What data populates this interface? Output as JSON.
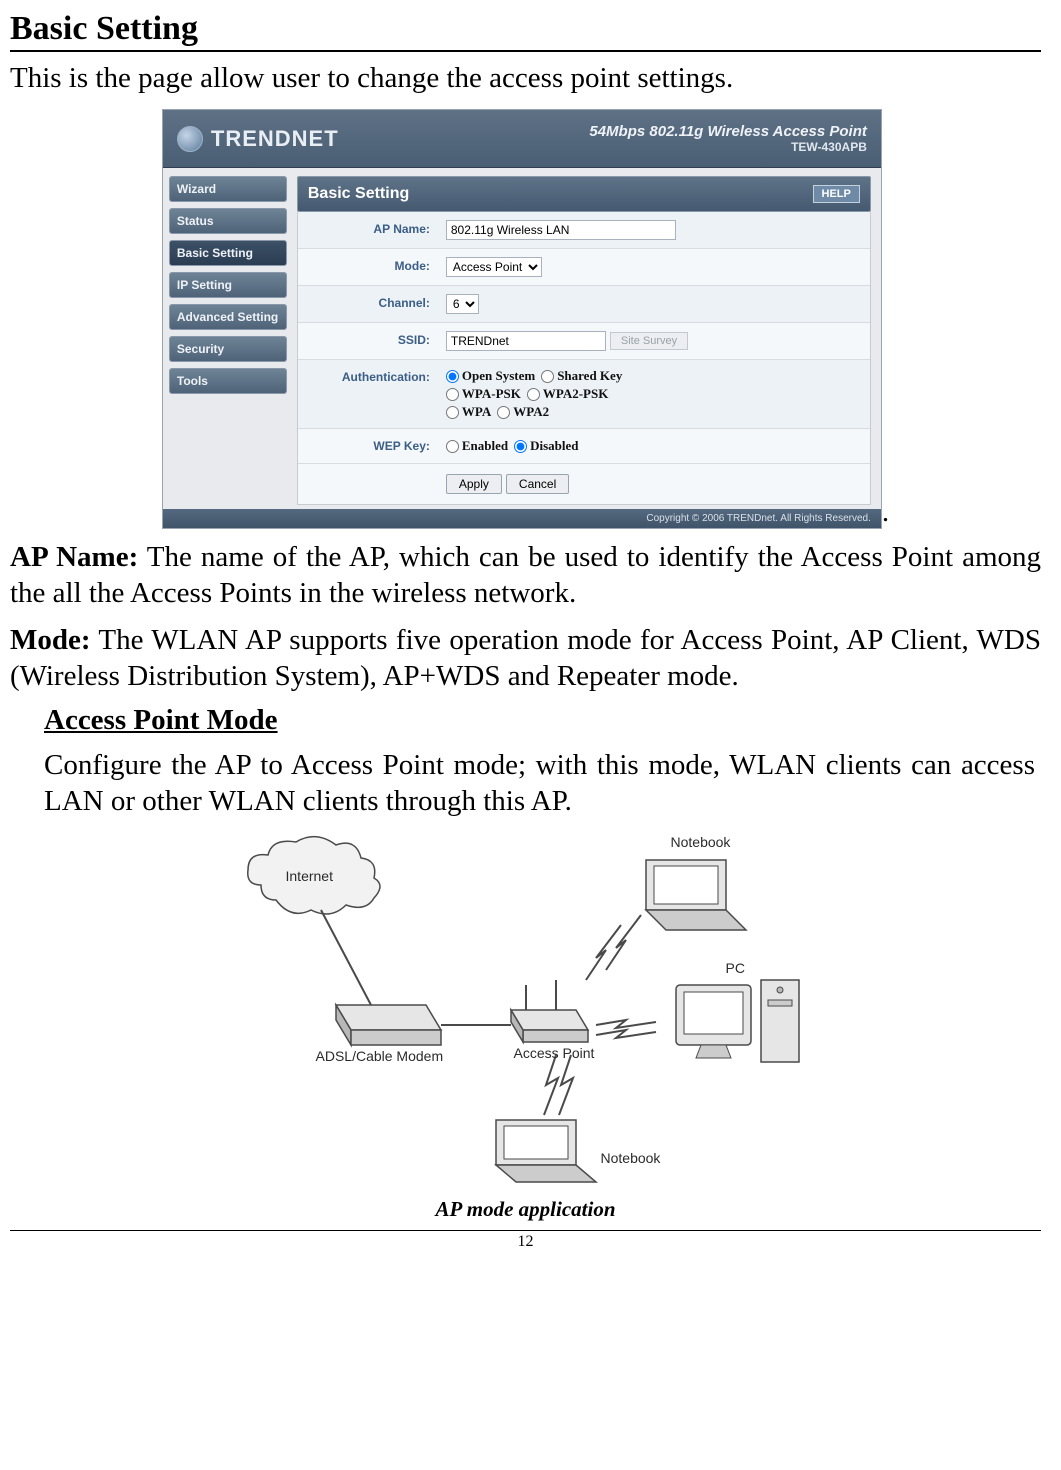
{
  "doc": {
    "heading": "Basic Setting",
    "intro": "This is the page allow user to change the access point settings.",
    "period_after_image": ".",
    "ap_name_para_bold": "AP Name:",
    "ap_name_para_rest": " The name of the AP, which can be used to identify the Access Point among the all the Access Points in the wireless network.",
    "mode_para_bold": "Mode:",
    "mode_para_rest": " The WLAN AP supports five operation mode for Access Point, AP Client, WDS (Wireless Distribution System), AP+WDS and Repeater mode.",
    "apmode_heading": "Access Point Mode",
    "apmode_para": "Configure the AP to Access Point mode; with this mode, WLAN clients can access LAN or other WLAN clients through this AP.",
    "caption": "AP mode application",
    "page_number": "12"
  },
  "router": {
    "brand": "TRENDNET",
    "header_sub_top": "54Mbps 802.11g Wireless Access Point",
    "header_sub_bot": "TEW-430APB",
    "sidebar": [
      "Wizard",
      "Status",
      "Basic Setting",
      "IP Setting",
      "Advanced Setting",
      "Security",
      "Tools"
    ],
    "active_sidebar_index": 2,
    "panel_title": "Basic Setting",
    "help_label": "HELP",
    "labels": {
      "ap_name": "AP Name:",
      "mode": "Mode:",
      "channel": "Channel:",
      "ssid": "SSID:",
      "authentication": "Authentication:",
      "wep_key": "WEP Key:"
    },
    "values": {
      "ap_name": "802.11g Wireless LAN",
      "mode_selected": "Access Point",
      "channel_selected": "6",
      "ssid": "TRENDnet",
      "site_survey_btn": "Site Survey",
      "auth_options": [
        "Open System",
        "Shared Key",
        "WPA-PSK",
        "WPA2-PSK",
        "WPA",
        "WPA2"
      ],
      "auth_selected_index": 0,
      "wep_options": [
        "Enabled",
        "Disabled"
      ],
      "wep_selected_index": 1,
      "apply_btn": "Apply",
      "cancel_btn": "Cancel"
    },
    "footer": "Copyright © 2006 TRENDnet. All Rights Reserved."
  },
  "diagram": {
    "labels": {
      "internet": "Internet",
      "modem": "ADSL/Cable Modem",
      "ap": "Access Point",
      "notebook_top": "Notebook",
      "notebook_bottom": "Notebook",
      "pc": "PC"
    },
    "colors": {
      "stroke": "#4a4a4a",
      "fill_light": "#e6e6e6",
      "fill_dark": "#b8b8b8",
      "screen": "#ffffff"
    }
  }
}
